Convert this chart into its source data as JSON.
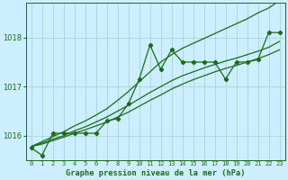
{
  "title": "Graphe pression niveau de la mer (hPa)",
  "bg_color": "#cceeff",
  "grid_color": "#aad4d4",
  "line_color": "#1a6b1a",
  "x_labels": [
    "0",
    "1",
    "2",
    "3",
    "4",
    "5",
    "6",
    "7",
    "8",
    "9",
    "10",
    "11",
    "12",
    "13",
    "14",
    "15",
    "16",
    "17",
    "18",
    "19",
    "20",
    "21",
    "22",
    "23"
  ],
  "pressure_main": [
    1015.75,
    1015.6,
    1016.05,
    1016.05,
    1016.05,
    1016.05,
    1016.05,
    1016.3,
    1016.35,
    1016.65,
    1017.15,
    1017.85,
    1017.35,
    1017.75,
    1017.5,
    1017.5,
    1017.5,
    1017.5,
    1017.15,
    1017.5,
    1017.5,
    1017.55,
    1018.1,
    1018.1
  ],
  "smooth_upper": [
    1015.78,
    1015.88,
    1015.98,
    1016.08,
    1016.2,
    1016.3,
    1016.42,
    1016.55,
    1016.72,
    1016.9,
    1017.1,
    1017.3,
    1017.5,
    1017.65,
    1017.78,
    1017.88,
    1017.98,
    1018.08,
    1018.18,
    1018.28,
    1018.38,
    1018.5,
    1018.6,
    1018.75
  ],
  "smooth_mid1": [
    1015.78,
    1015.85,
    1015.93,
    1016.0,
    1016.1,
    1016.18,
    1016.28,
    1016.38,
    1016.5,
    1016.62,
    1016.75,
    1016.88,
    1017.0,
    1017.12,
    1017.22,
    1017.3,
    1017.38,
    1017.45,
    1017.52,
    1017.58,
    1017.65,
    1017.72,
    1017.8,
    1017.92
  ],
  "smooth_mid2": [
    1015.78,
    1015.83,
    1015.9,
    1015.97,
    1016.05,
    1016.12,
    1016.2,
    1016.28,
    1016.38,
    1016.48,
    1016.6,
    1016.72,
    1016.83,
    1016.95,
    1017.05,
    1017.14,
    1017.22,
    1017.3,
    1017.37,
    1017.43,
    1017.5,
    1017.57,
    1017.65,
    1017.75
  ],
  "ylim": [
    1015.5,
    1018.7
  ],
  "yticks": [
    1016,
    1017,
    1018
  ]
}
